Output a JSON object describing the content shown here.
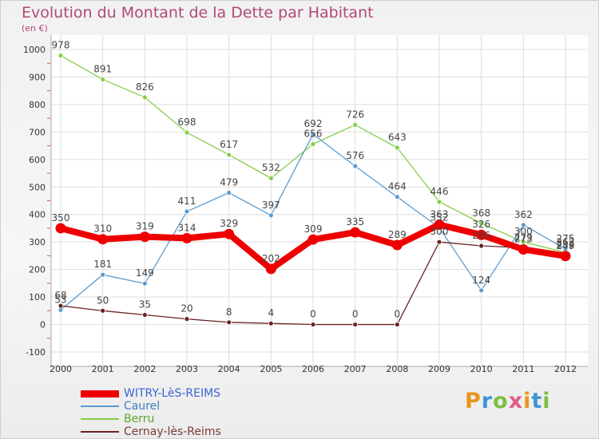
{
  "chart_data": {
    "type": "line",
    "title": "Evolution du Montant de la Dette par Habitant",
    "unit_label": "(en €)",
    "ylim": [
      -100,
      1000
    ],
    "y_ticks": [
      -100,
      0,
      100,
      200,
      300,
      400,
      500,
      600,
      700,
      800,
      900,
      1000
    ],
    "x": [
      "2000",
      "2001",
      "2002",
      "2003",
      "2004",
      "2005",
      "2006",
      "2007",
      "2008",
      "2009",
      "2010",
      "2011",
      "2012"
    ],
    "grid": true,
    "legend_position": "bottom-left",
    "series": [
      {
        "name": "WITRY-LèS-REIMS",
        "color": "#ee0000",
        "values": [
          350,
          310,
          319,
          314,
          329,
          202,
          309,
          335,
          289,
          363,
          326,
          273,
          249
        ]
      },
      {
        "name": "Caurel",
        "color": "#5b9bd0",
        "values": [
          53,
          181,
          149,
          411,
          479,
          397,
          692,
          576,
          464,
          352,
          124,
          362,
          275
        ]
      },
      {
        "name": "Berru",
        "color": "#86cd48",
        "values": [
          978,
          891,
          826,
          698,
          617,
          532,
          656,
          726,
          643,
          446,
          368,
          300,
          262
        ]
      },
      {
        "name": "Cernay-lès-Reims",
        "color": "#6b2222",
        "values": [
          68,
          50,
          35,
          20,
          8,
          4,
          0,
          0,
          0,
          300,
          286,
          279,
          252
        ]
      }
    ]
  },
  "logo": {
    "text": "Proxiti",
    "colors": [
      "#e8961e",
      "#3e95d6",
      "#7cc043",
      "#e05a8a",
      "#e8961e",
      "#3e95d6",
      "#7cc043"
    ]
  }
}
